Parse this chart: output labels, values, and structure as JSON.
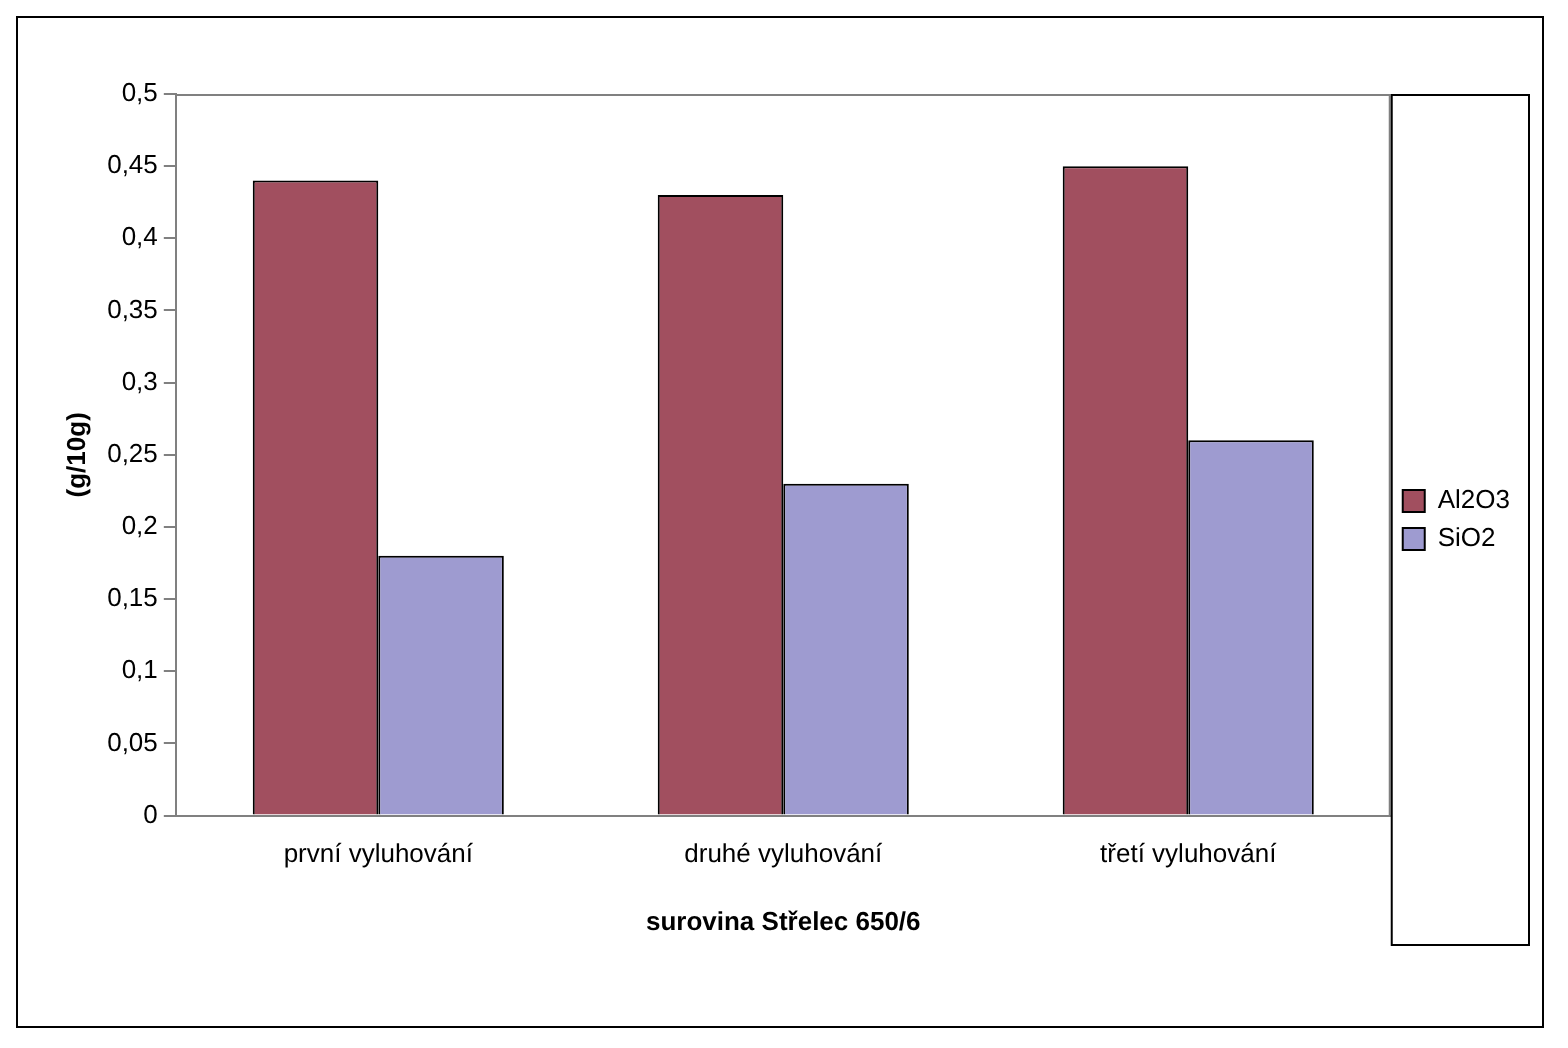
{
  "chart_data": {
    "type": "bar",
    "xlabel": "surovina Střelec 650/6",
    "ylabel": "(g/10g)",
    "categories": [
      "první vyluhování",
      "druhé vyluhování",
      "třetí vyluhování"
    ],
    "series": [
      {
        "name": "Al2O3",
        "color": "#a14f5f",
        "values": [
          0.44,
          0.43,
          0.45
        ]
      },
      {
        "name": "SiO2",
        "color": "#9e9bd0",
        "values": [
          0.18,
          0.23,
          0.26
        ]
      }
    ],
    "ylim": [
      0,
      0.5
    ],
    "yticks": [
      {
        "value": 0,
        "label": "0"
      },
      {
        "value": 0.05,
        "label": "0,05"
      },
      {
        "value": 0.1,
        "label": "0,1"
      },
      {
        "value": 0.15,
        "label": "0,15"
      },
      {
        "value": 0.2,
        "label": "0,2"
      },
      {
        "value": 0.25,
        "label": "0,25"
      },
      {
        "value": 0.3,
        "label": "0,3"
      },
      {
        "value": 0.35,
        "label": "0,35"
      },
      {
        "value": 0.4,
        "label": "0,4"
      },
      {
        "value": 0.45,
        "label": "0,45"
      },
      {
        "value": 0.5,
        "label": "0,5"
      }
    ],
    "grid": false,
    "legend": "right"
  }
}
